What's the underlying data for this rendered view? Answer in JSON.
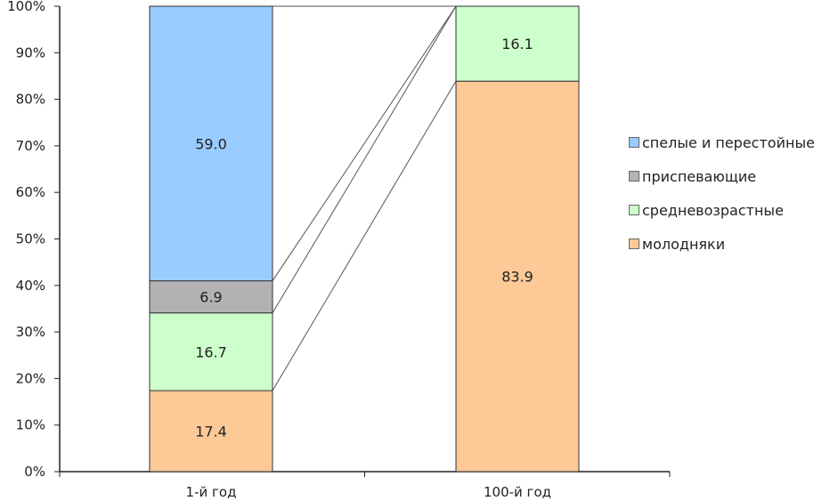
{
  "chart_data": {
    "type": "bar",
    "stacked": true,
    "categories": [
      "1-й год",
      "100-й год"
    ],
    "ylim": [
      0,
      100
    ],
    "yticks": [
      "0%",
      "10%",
      "20%",
      "30%",
      "40%",
      "50%",
      "60%",
      "70%",
      "80%",
      "90%",
      "100%"
    ],
    "series": [
      {
        "name": "молодняки",
        "color": "#fcc997",
        "values": [
          17.4,
          83.9
        ]
      },
      {
        "name": "средневозрастные",
        "color": "#ccffcc",
        "values": [
          16.7,
          16.1
        ]
      },
      {
        "name": "приспевающие",
        "color": "#b2b2b2",
        "values": [
          6.9,
          0
        ]
      },
      {
        "name": "спелые и перестойные",
        "color": "#99ccff",
        "values": [
          59.0,
          0
        ]
      }
    ],
    "data_labels": [
      [
        "17.4",
        "83.9"
      ],
      [
        "16.7",
        "16.1"
      ],
      [
        "6.9",
        ""
      ],
      [
        "59.0",
        ""
      ]
    ],
    "legend": {
      "position": "right",
      "items": [
        "спелые и перестойные",
        "приспевающие",
        "средневозрастные",
        "молодняки"
      ]
    },
    "connector_lines": true,
    "grid": false
  }
}
